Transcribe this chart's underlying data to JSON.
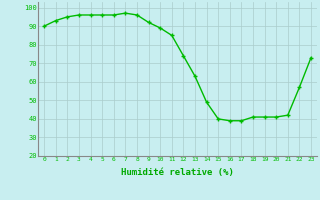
{
  "x": [
    0,
    1,
    2,
    3,
    4,
    5,
    6,
    7,
    8,
    9,
    10,
    11,
    12,
    13,
    14,
    15,
    16,
    17,
    18,
    19,
    20,
    21,
    22,
    23
  ],
  "y": [
    90,
    93,
    95,
    96,
    96,
    96,
    96,
    97,
    96,
    92,
    89,
    85,
    74,
    63,
    49,
    40,
    39,
    39,
    41,
    41,
    41,
    42,
    57,
    73
  ],
  "line_color": "#00bb00",
  "marker": "+",
  "bg_color": "#c8eef0",
  "grid_color": "#aacccc",
  "xlabel": "Humidité relative (%)",
  "xlabel_color": "#00aa00",
  "tick_color": "#00bb00",
  "ylim": [
    20,
    103
  ],
  "yticks": [
    20,
    30,
    40,
    50,
    60,
    70,
    80,
    90,
    100
  ]
}
